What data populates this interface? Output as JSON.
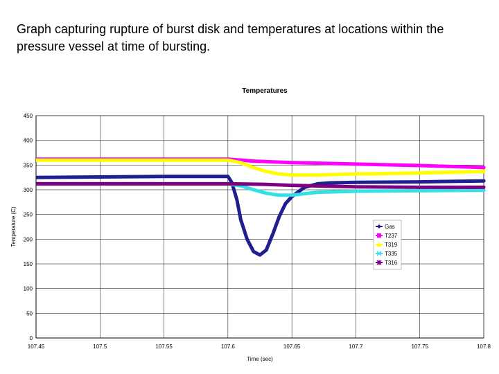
{
  "caption": "Graph capturing rupture of burst disk and temperatures at locations within the pressure vessel at time of bursting.",
  "chart_data": {
    "type": "line",
    "title": "Temperatures",
    "xlabel": "Time (sec)",
    "ylabel": "Temperature (C)",
    "xlim": [
      107.45,
      107.8
    ],
    "ylim": [
      0,
      450
    ],
    "x_ticks": [
      "107.45",
      "107.5",
      "107.55",
      "107.6",
      "107.65",
      "107.7",
      "107.75",
      "107.8"
    ],
    "y_ticks": [
      "0",
      "50",
      "100",
      "150",
      "200",
      "250",
      "300",
      "350",
      "400",
      "450"
    ],
    "grid": true,
    "legend_position": "right",
    "series": [
      {
        "name": "Gas",
        "color": "#1f1f8f",
        "marker": "diamond",
        "x": [
          107.45,
          107.5,
          107.55,
          107.6,
          107.603,
          107.607,
          107.61,
          107.615,
          107.62,
          107.625,
          107.63,
          107.635,
          107.64,
          107.645,
          107.65,
          107.655,
          107.66,
          107.67,
          107.68,
          107.7,
          107.75,
          107.8
        ],
        "values": [
          325,
          326,
          327,
          327,
          315,
          280,
          240,
          200,
          175,
          168,
          178,
          210,
          245,
          272,
          286,
          296,
          305,
          312,
          314,
          315,
          316,
          318
        ]
      },
      {
        "name": "T237",
        "color": "#ff00ff",
        "marker": "square",
        "x": [
          107.45,
          107.5,
          107.55,
          107.6,
          107.62,
          107.65,
          107.7,
          107.75,
          107.8
        ],
        "values": [
          362,
          362,
          362,
          362,
          358,
          355,
          352,
          349,
          345
        ]
      },
      {
        "name": "T319",
        "color": "#ffff00",
        "marker": "triangle",
        "x": [
          107.45,
          107.5,
          107.55,
          107.6,
          107.61,
          107.62,
          107.63,
          107.64,
          107.65,
          107.67,
          107.7,
          107.75,
          107.8
        ],
        "values": [
          360,
          360,
          360,
          360,
          355,
          345,
          337,
          332,
          330,
          330,
          332,
          334,
          337
        ]
      },
      {
        "name": "T335",
        "color": "#33e0e8",
        "marker": "x",
        "x": [
          107.45,
          107.5,
          107.55,
          107.6,
          107.61,
          107.62,
          107.63,
          107.64,
          107.65,
          107.66,
          107.67,
          107.7,
          107.75,
          107.8
        ],
        "values": [
          312,
          312,
          312,
          312,
          308,
          300,
          293,
          289,
          289,
          292,
          295,
          297,
          298,
          299
        ]
      },
      {
        "name": "T316",
        "color": "#7f007f",
        "marker": "star",
        "x": [
          107.45,
          107.5,
          107.55,
          107.6,
          107.63,
          107.65,
          107.7,
          107.75,
          107.8
        ],
        "values": [
          312,
          312,
          312,
          312,
          311,
          309,
          306,
          305,
          305
        ]
      }
    ]
  }
}
